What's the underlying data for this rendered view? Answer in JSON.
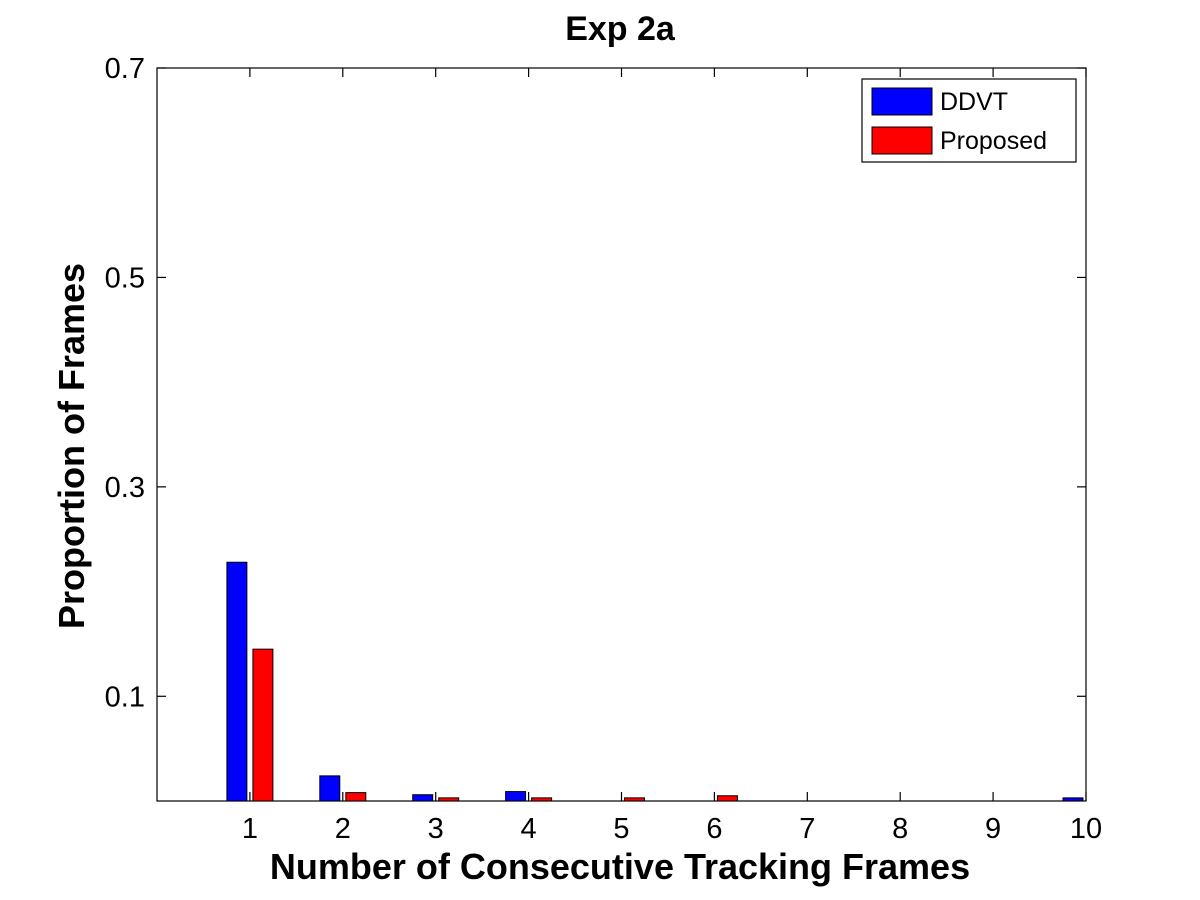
{
  "chart_data": {
    "type": "bar",
    "title": "Exp 2a",
    "xlabel": "Number of Consecutive Tracking Frames",
    "ylabel": "Proportion of Frames",
    "categories": [
      "1",
      "2",
      "3",
      "4",
      "5",
      "6",
      "7",
      "8",
      "9",
      "10"
    ],
    "yticks": [
      "0.1",
      "0.3",
      "0.5",
      "0.7"
    ],
    "ytick_values": [
      0.1,
      0.3,
      0.5,
      0.7
    ],
    "ylim": [
      0,
      0.7
    ],
    "xlim": [
      0,
      10
    ],
    "grid": false,
    "legend_position": "top-right",
    "series": [
      {
        "name": "DDVT",
        "color": "#0000ff",
        "values": [
          0.228,
          0.024,
          0.006,
          0.009,
          0,
          0,
          0,
          0,
          0,
          0.003
        ]
      },
      {
        "name": "Proposed",
        "color": "#ff0000",
        "values": [
          0.145,
          0.008,
          0.003,
          0.003,
          0.003,
          0.005,
          0,
          0,
          0,
          0
        ]
      }
    ]
  }
}
